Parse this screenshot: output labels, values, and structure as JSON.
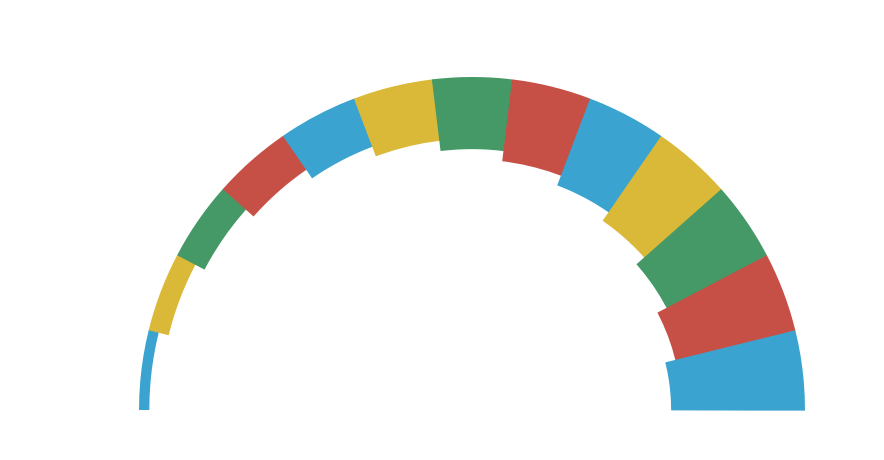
{
  "chart_data": {
    "type": "pie",
    "values": [
      1,
      2,
      3,
      4,
      5,
      6,
      7,
      8,
      9,
      10,
      11,
      12,
      13
    ],
    "colors": [
      "#3aa3cf",
      "#dbb938",
      "#449966",
      "#c65046"
    ]
  }
}
